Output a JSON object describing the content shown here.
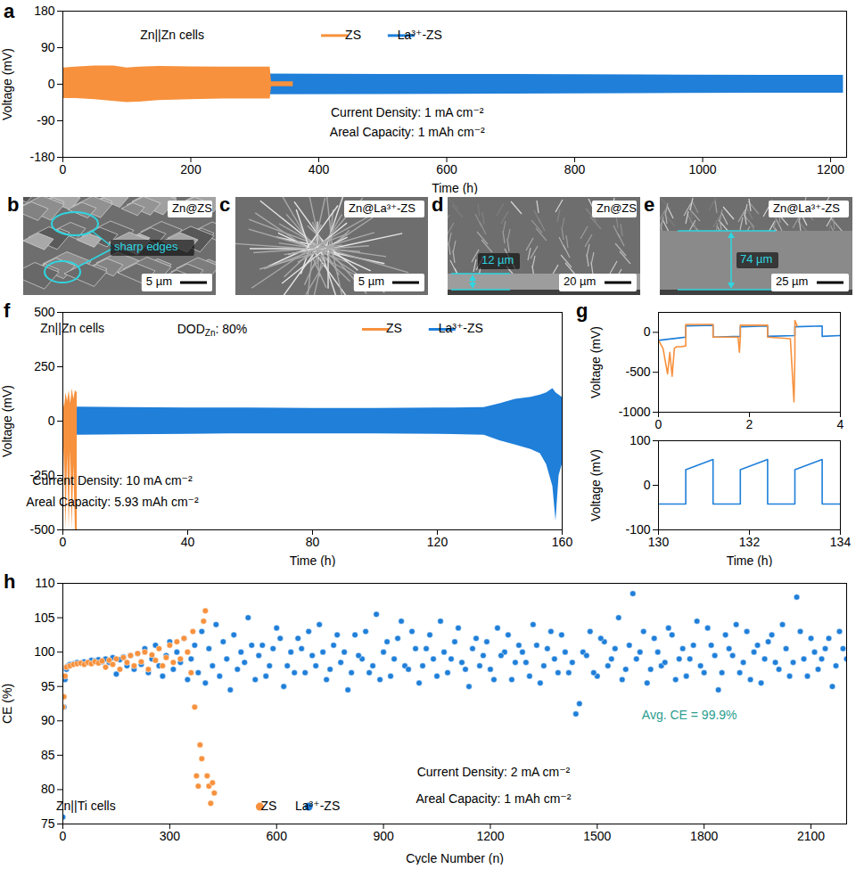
{
  "chart_data": [
    {
      "panel": "a",
      "type": "line",
      "xlabel": "Time (h)",
      "ylabel": "Voltage (mV)",
      "xlim": [
        0,
        1225
      ],
      "xticks": [
        0,
        200,
        400,
        600,
        800,
        1000,
        1200
      ],
      "ylim": [
        -180,
        180
      ],
      "yticks": [
        -180,
        -90,
        0,
        90,
        180
      ],
      "legend": "top",
      "annotations": [
        "Zn||Zn cells",
        "Current Density: 1 mA cm⁻²",
        "Areal Capacity: 1 mAh cm⁻²"
      ],
      "series": [
        {
          "name": "ZS",
          "color": "#F7913D",
          "type": "band",
          "x": [
            0,
            1,
            20,
            50,
            80,
            100,
            120,
            150,
            200,
            250,
            300,
            324,
            326,
            360
          ],
          "upper": [
            55,
            40,
            42,
            45,
            45,
            40,
            42,
            44,
            43,
            42,
            42,
            42,
            6,
            6
          ],
          "lower": [
            -45,
            -35,
            -35,
            -38,
            -42,
            -45,
            -44,
            -40,
            -38,
            -36,
            -36,
            -36,
            -6,
            -6
          ]
        },
        {
          "name": "La³⁺-ZS",
          "color": "#1F7FD9",
          "type": "band",
          "x": [
            0,
            1,
            3,
            100,
            300,
            500,
            700,
            900,
            1100,
            1220
          ],
          "upper": [
            25,
            25,
            25,
            26,
            25,
            24,
            24,
            23,
            22,
            22
          ],
          "lower": [
            -120,
            -30,
            -28,
            -27,
            -26,
            -25,
            -24,
            -23,
            -22,
            -22
          ]
        }
      ]
    },
    {
      "panel": "f",
      "type": "line",
      "xlabel": "Time (h)",
      "ylabel": "Voltage (mV)",
      "xlim": [
        0,
        160
      ],
      "xticks": [
        0,
        40,
        80,
        120,
        160
      ],
      "ylim": [
        -500,
        500
      ],
      "yticks": [
        -500,
        -250,
        0,
        250,
        500
      ],
      "legend": "top-right",
      "annotations": [
        "Zn||Zn cells",
        {
          "text": "DOD",
          "subscript": "Zn",
          "suffix": ": 80%"
        },
        "Current Density: 10 mA cm⁻²",
        "Areal Capacity: 5.93 mAh cm⁻²"
      ],
      "series": [
        {
          "name": "ZS",
          "color": "#F7913D",
          "type": "band",
          "x": [
            0,
            0.5,
            1,
            1.5,
            2,
            2.5,
            3,
            3.5,
            4,
            4.6
          ],
          "upper": [
            120,
            60,
            130,
            90,
            140,
            80,
            150,
            100,
            140,
            130
          ],
          "lower": [
            -480,
            -120,
            -500,
            -150,
            -500,
            -130,
            -500,
            -200,
            -500,
            -500
          ]
        },
        {
          "name": "La³⁺-ZS",
          "color": "#1F7FD9",
          "type": "band",
          "x": [
            0,
            0.5,
            5,
            20,
            40,
            60,
            80,
            100,
            120,
            135,
            140,
            145,
            150,
            153,
            155,
            157,
            158,
            159,
            160
          ],
          "upper": [
            30,
            60,
            65,
            62,
            60,
            60,
            58,
            58,
            60,
            62,
            80,
            100,
            110,
            120,
            130,
            150,
            130,
            120,
            110
          ],
          "lower": [
            -150,
            -60,
            -65,
            -62,
            -60,
            -58,
            -58,
            -58,
            -60,
            -65,
            -90,
            -110,
            -130,
            -150,
            -200,
            -300,
            -460,
            -250,
            -200
          ]
        }
      ]
    },
    {
      "panel": "g",
      "type": "line",
      "ylabel": "Voltage (mV)",
      "xlim": [
        0,
        4
      ],
      "xticks": [
        0,
        2,
        4
      ],
      "ylim": [
        -1000,
        250
      ],
      "yticks": [
        -1000,
        -500,
        0
      ],
      "series": [
        {
          "color": "#F7913D",
          "x": [
            0,
            0.1,
            0.2,
            0.25,
            0.3,
            0.35,
            0.4,
            0.5,
            0.6,
            0.6,
            1.2,
            1.2,
            1.75,
            1.78,
            1.8,
            1.8,
            2.4,
            2.4,
            2.9,
            2.98,
            3.0,
            3.0,
            3.05
          ],
          "values": [
            -100,
            -200,
            -520,
            -250,
            -550,
            -200,
            -180,
            -180,
            -170,
            100,
            100,
            -60,
            -60,
            -250,
            -60,
            90,
            90,
            -60,
            -80,
            -870,
            -300,
            150,
            80
          ]
        },
        {
          "color": "#1F7FD9",
          "x": [
            0,
            0.6,
            0.6,
            1.2,
            1.2,
            1.8,
            1.8,
            2.4,
            2.4,
            3.0,
            3.0,
            3.6,
            3.6,
            4.0
          ],
          "values": [
            -100,
            -60,
            80,
            90,
            -60,
            -50,
            70,
            80,
            -50,
            -40,
            70,
            80,
            -50,
            -40
          ]
        }
      ]
    },
    {
      "type": "line",
      "xlabel": "Time (h)",
      "ylabel": "Voltage (mV)",
      "xlim": [
        130,
        134
      ],
      "xticks": [
        130,
        132,
        134
      ],
      "ylim": [
        -100,
        100
      ],
      "yticks": [
        -100,
        0,
        100
      ],
      "series": [
        {
          "color": "#1F7FD9",
          "x": [
            130,
            130.6,
            130.6,
            131.2,
            131.2,
            131.8,
            131.8,
            132.4,
            132.4,
            133.0,
            133.0,
            133.6,
            133.6,
            134
          ],
          "values": [
            -42,
            -42,
            35,
            58,
            -42,
            -42,
            35,
            58,
            -42,
            -42,
            35,
            58,
            -42,
            -42
          ]
        }
      ]
    },
    {
      "panel": "h",
      "type": "scatter",
      "xlabel": "Cycle Number (n)",
      "ylabel": "CE (%)",
      "xlim": [
        0,
        2200
      ],
      "xticks": [
        0,
        300,
        600,
        900,
        1200,
        1500,
        1800,
        2100
      ],
      "ylim": [
        75,
        110
      ],
      "yticks": [
        75,
        80,
        85,
        90,
        95,
        100,
        105,
        110
      ],
      "legend": "bottom",
      "annotations": [
        "Zn||Ti cells",
        "Current Density: 2 mA cm⁻²",
        "Areal Capacity: 1 mAh cm⁻²",
        {
          "text": "Avg. CE = 99.9%",
          "color": "#2A9D8F"
        }
      ],
      "series": [
        {
          "name": "ZS",
          "color": "#F7913D",
          "marker": "circle",
          "x": [
            0,
            3,
            6,
            10,
            20,
            30,
            40,
            50,
            60,
            70,
            80,
            90,
            100,
            110,
            120,
            130,
            140,
            150,
            160,
            170,
            180,
            190,
            200,
            210,
            220,
            230,
            240,
            250,
            260,
            270,
            280,
            290,
            300,
            310,
            320,
            330,
            340,
            350,
            360,
            365,
            370,
            375,
            380,
            385,
            390,
            395,
            400,
            405,
            410,
            415,
            420,
            425
          ],
          "values": [
            92,
            93.5,
            96.5,
            97.8,
            98.0,
            98.2,
            98.3,
            98.4,
            98.2,
            98.5,
            98.3,
            98.6,
            98.4,
            98.7,
            97.8,
            98.8,
            98.2,
            99.0,
            97.5,
            99.2,
            98.5,
            99.5,
            98.0,
            99.8,
            98.6,
            100.0,
            97.5,
            99.6,
            98.8,
            100.5,
            98.0,
            99.2,
            101.0,
            98.5,
            101.5,
            99.0,
            102.0,
            100.0,
            97.0,
            103.0,
            92.0,
            82.0,
            80.5,
            86.5,
            84.5,
            104.5,
            106.0,
            82.0,
            80.5,
            78.0,
            81.0,
            79.5
          ]
        },
        {
          "name": "La³⁺-ZS",
          "color": "#1F7FD9",
          "marker": "circle",
          "x": [
            0,
            3,
            6,
            10,
            15,
            20,
            30,
            40,
            50,
            60,
            70,
            80,
            90,
            100,
            110,
            120,
            130,
            140,
            150,
            160,
            170,
            180,
            190,
            200,
            210,
            220,
            230,
            240,
            250,
            260,
            270,
            280,
            290,
            300,
            310,
            320,
            330,
            340,
            350,
            360,
            370,
            380,
            390,
            400,
            410,
            420,
            430,
            440,
            450,
            460,
            470,
            480,
            490,
            500,
            520,
            540,
            560,
            580,
            600,
            620,
            640,
            660,
            680,
            700,
            720,
            740,
            760,
            780,
            800,
            820,
            840,
            860,
            880,
            900,
            920,
            940,
            960,
            980,
            1000,
            1020,
            1040,
            1060,
            1080,
            1100,
            1120,
            1140,
            1160,
            1180,
            1200,
            1220,
            1240,
            1260,
            1280,
            1300,
            1320,
            1340,
            1360,
            1380,
            1400,
            1420,
            1440,
            1450,
            1460,
            1480,
            1500,
            1520,
            1540,
            1560,
            1580,
            1600,
            1620,
            1640,
            1660,
            1680,
            1700,
            1720,
            1740,
            1760,
            1780,
            1800,
            1820,
            1840,
            1860,
            1880,
            1900,
            1920,
            1940,
            1960,
            1980,
            2000,
            2020,
            2040,
            2060,
            2080,
            2100,
            2120,
            2140,
            2160,
            2180,
            2200,
            510,
            530,
            550,
            570,
            590,
            610,
            630,
            650,
            670,
            690,
            710,
            730,
            750,
            770,
            790,
            810,
            830,
            850,
            870,
            890,
            910,
            930,
            950,
            970,
            990,
            1010,
            1030,
            1050,
            1070,
            1090,
            1110,
            1130,
            1150,
            1170,
            1190,
            1210,
            1230,
            1250,
            1270,
            1290,
            1310,
            1330,
            1350,
            1370,
            1390,
            1410,
            1430,
            1470,
            1490,
            1510,
            1530,
            1550,
            1570,
            1590,
            1610,
            1630,
            1650,
            1670,
            1690,
            1710,
            1730,
            1750,
            1770,
            1790,
            1810,
            1830,
            1850,
            1870,
            1890,
            1910,
            1930,
            1950,
            1970,
            1990,
            2010,
            2030,
            2050,
            2070,
            2090,
            2110,
            2130,
            2150,
            2170,
            2190
          ],
          "values": [
            76,
            92,
            96,
            97.5,
            98,
            98.2,
            98.3,
            98.5,
            98.4,
            98.6,
            98.5,
            98.8,
            98.7,
            98.9,
            98.6,
            99.0,
            98.5,
            99.2,
            96.8,
            98.9,
            99.3,
            98.0,
            99.5,
            97.5,
            99.8,
            98.2,
            100.5,
            97.0,
            99.0,
            101.0,
            98.0,
            96.5,
            99.5,
            101.5,
            97.5,
            100.0,
            98.5,
            102.0,
            96.0,
            99.0,
            101.0,
            97.0,
            103.0,
            95.5,
            100.5,
            98.0,
            104.0,
            96.5,
            101.5,
            99.0,
            94.5,
            102.5,
            97.5,
            100.0,
            105.0,
            96.0,
            101.0,
            98.0,
            103.5,
            95.0,
            100.0,
            102.0,
            97.0,
            99.5,
            104.0,
            96.0,
            101.0,
            98.5,
            94.5,
            102.5,
            99.0,
            97.0,
            105.5,
            100.0,
            96.5,
            102.0,
            98.0,
            103.0,
            95.5,
            100.5,
            99.0,
            104.5,
            97.0,
            101.5,
            98.5,
            95.0,
            102.0,
            99.5,
            97.5,
            103.5,
            100.0,
            96.0,
            101.0,
            98.5,
            104.0,
            95.5,
            100.5,
            99.0,
            102.5,
            97.0,
            91.0,
            92.5,
            100.0,
            103.0,
            96.5,
            101.5,
            99.0,
            105.0,
            97.5,
            108.5,
            100.0,
            95.5,
            102.0,
            98.0,
            103.5,
            96.0,
            100.5,
            99.0,
            104.5,
            97.0,
            101.0,
            94.5,
            102.5,
            99.5,
            97.0,
            103.0,
            100.0,
            95.5,
            101.5,
            98.5,
            104.0,
            96.5,
            108.0,
            99.0,
            102.0,
            97.5,
            100.5,
            95.0,
            103.0,
            99.0,
            98.5,
            101.0,
            99.5,
            96.5,
            100.5,
            102.0,
            98.0,
            97.0,
            100.5,
            103.0,
            98.0,
            100.0,
            97.5,
            102.5,
            100.0,
            97.0,
            99.5,
            103.0,
            98.0,
            96.0,
            101.5,
            99.0,
            104.5,
            97.5,
            100.5,
            98.0,
            102.5,
            96.5,
            100.0,
            99.0,
            103.5,
            97.5,
            100.5,
            98.0,
            101.5,
            96.0,
            99.5,
            102.5,
            98.5,
            100.0,
            96.5,
            101.0,
            98.0,
            103.0,
            97.0,
            100.0,
            98.5,
            99.5,
            97.0,
            102.0,
            98.0,
            100.5,
            96.0,
            101.0,
            99.0,
            103.0,
            97.5,
            100.0,
            98.5,
            102.5,
            99.0,
            96.5,
            101.0,
            98.0,
            103.5,
            99.5,
            97.0,
            100.5,
            104.0,
            98.5,
            96.0,
            101.0,
            99.0,
            102.5,
            97.5,
            100.5,
            98.5,
            103.0,
            96.5,
            100.0,
            99.0,
            102.0,
            98.0,
            100.5
          ]
        }
      ]
    }
  ],
  "images": [
    {
      "panel": "b",
      "label": "Zn@ZS",
      "scale_bar": "5 µm",
      "note": "sharp edges"
    },
    {
      "panel": "c",
      "label": "Zn@La³⁺-ZS",
      "scale_bar": "5 µm"
    },
    {
      "panel": "d",
      "label": "Zn@ZS",
      "scale_bar": "20 µm",
      "thickness": "12 µm"
    },
    {
      "panel": "e",
      "label": "Zn@La³⁺-ZS",
      "scale_bar": "25 µm",
      "thickness": "74 µm"
    }
  ]
}
